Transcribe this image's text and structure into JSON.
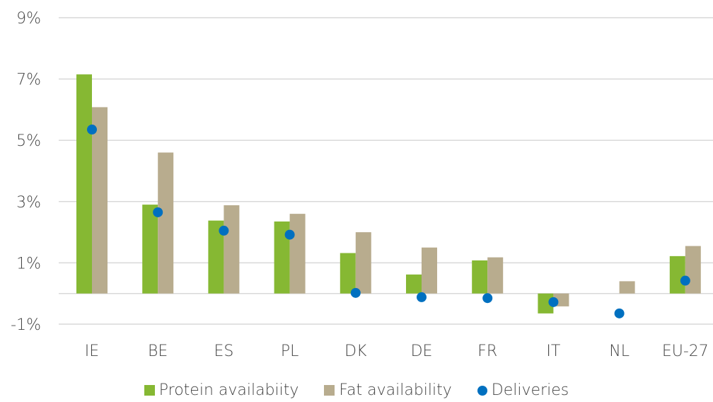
{
  "chart_data": {
    "type": "bar",
    "categories": [
      "IE",
      "BE",
      "ES",
      "PL",
      "DK",
      "DE",
      "FR",
      "IT",
      "NL",
      "EU-27"
    ],
    "series": [
      {
        "name": "Protein availabiity",
        "kind": "bar",
        "color": "#86b833",
        "values": [
          7.15,
          2.9,
          2.38,
          2.35,
          1.32,
          0.62,
          1.08,
          -0.65,
          0.0,
          1.22
        ]
      },
      {
        "name": "Fat availability",
        "kind": "bar",
        "color": "#b8ac8e",
        "values": [
          6.08,
          4.6,
          2.88,
          2.6,
          2.0,
          1.5,
          1.18,
          -0.42,
          0.4,
          1.55
        ]
      },
      {
        "name": "Deliveries",
        "kind": "dot",
        "color": "#0070c0",
        "values": [
          5.35,
          2.65,
          2.05,
          1.92,
          0.02,
          -0.12,
          -0.15,
          -0.28,
          -0.65,
          0.42
        ]
      }
    ],
    "yticks": [
      "9%",
      "7%",
      "5%",
      "3%",
      "1%",
      "-1%"
    ],
    "ytick_values": [
      9,
      7,
      5,
      3,
      1,
      -1
    ],
    "ylim": [
      -1,
      9
    ],
    "grid": true,
    "legend_position": "bottom"
  }
}
